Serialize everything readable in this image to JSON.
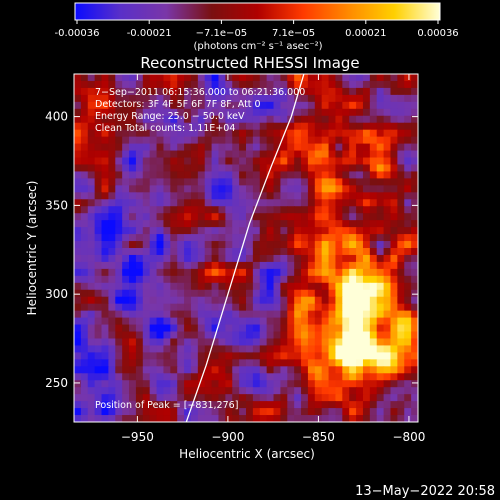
{
  "colorbar": {
    "ticks": [
      "-0.00036",
      "-0.00021",
      "−7.1e−05",
      "7.1e−05",
      "0.00021",
      "0.00036"
    ],
    "unit_label": "(photons cm⁻² s⁻¹ asec⁻²)",
    "colormap": [
      "#0a0aff",
      "#5a30c8",
      "#7a36a8",
      "#7a1010",
      "#b00000",
      "#ff3a00",
      "#ff8a00",
      "#ffd000",
      "#ffffd8"
    ]
  },
  "chart_data": {
    "type": "heatmap",
    "title": "Reconstructed RHESSI Image",
    "xlabel": "Heliocentric X (arcsec)",
    "ylabel": "Heliocentric Y (arcsec)",
    "xlim": [
      -985,
      -795
    ],
    "ylim": [
      228,
      424
    ],
    "x_ticks": [
      -950,
      -900,
      -850,
      -800
    ],
    "y_ticks": [
      250,
      300,
      350,
      400
    ],
    "x_tick_labels": [
      "−950",
      "−900",
      "−850",
      "−800"
    ],
    "y_tick_labels": [
      "250",
      "300",
      "350",
      "400"
    ],
    "value_range": [
      -0.00036,
      0.00036
    ],
    "peak": [
      -831,
      276
    ],
    "limb_curve": [
      [
        -923,
        228
      ],
      [
        -912,
        260
      ],
      [
        -900,
        300
      ],
      [
        -888,
        340
      ],
      [
        -876,
        372
      ],
      [
        -865,
        400
      ],
      [
        -858,
        424
      ]
    ],
    "annotations": [
      "7−Sep−2011 06:15:36.000 to 06:21:36.000",
      "Detectors: 3F 4F 5F 6F 7F 8F, Att 0",
      "Energy Range: 25.0 − 50.0 keV",
      "Clean    Total counts: 1.11E+04"
    ],
    "peak_label": "Position of Peak = [−831,276]"
  },
  "footer": {
    "timestamp": "13−May−2022 20:58"
  }
}
